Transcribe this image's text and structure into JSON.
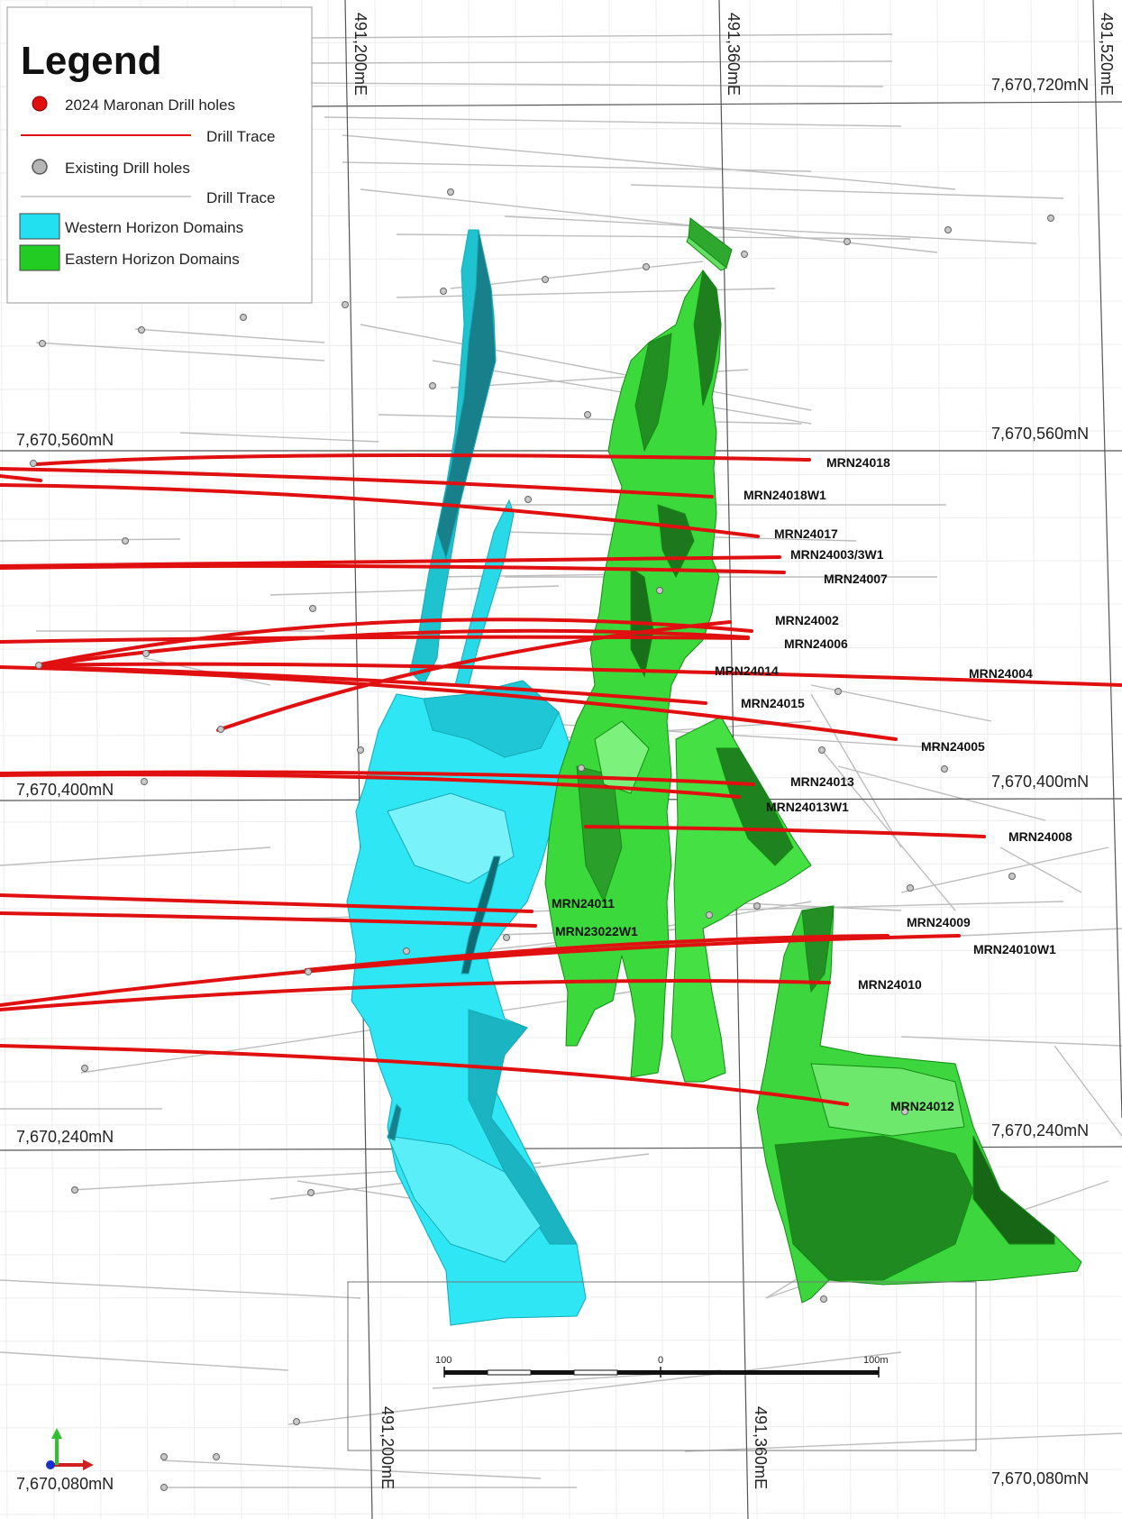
{
  "legend": {
    "title": "Legend",
    "items": [
      {
        "label": "2024 Maronan Drill holes",
        "symbol": "red-dot"
      },
      {
        "label": "Drill Trace",
        "symbol": "red-line"
      },
      {
        "label": "Existing Drill holes",
        "symbol": "grey-dot"
      },
      {
        "label": "Drill Trace",
        "symbol": "grey-line"
      },
      {
        "label": "Western Horizon Domains",
        "symbol": "cyan-box"
      },
      {
        "label": "Eastern Horizon Domains",
        "symbol": "green-box"
      }
    ]
  },
  "colors": {
    "drill_2024": "#e01010",
    "existing": "#b8b8b8",
    "western": "#22e0f0",
    "eastern": "#3ad83a",
    "eastern_dark": "#178a17",
    "western_dark": "#1a8f9a"
  },
  "grid_labels": {
    "northings": [
      {
        "left": "7,670,720mN",
        "right": "7,670,720mN",
        "show_left": false
      },
      {
        "left": "7,670,560mN",
        "right": "7,670,560mN",
        "show_left": true
      },
      {
        "left": "7,670,400mN",
        "right": "7,670,400mN",
        "show_left": true
      },
      {
        "left": "7,670,240mN",
        "right": "7,670,240mN",
        "show_left": true
      },
      {
        "left": "7,670,080mN",
        "right": "7,670,080mN",
        "show_left": true
      }
    ],
    "eastings": [
      "491,200mE",
      "491,360mE",
      "491,520mE"
    ]
  },
  "drill_holes": [
    {
      "id": "MRN24018"
    },
    {
      "id": "MRN24018W1"
    },
    {
      "id": "MRN24017"
    },
    {
      "id": "MRN24003/3W1"
    },
    {
      "id": "MRN24007"
    },
    {
      "id": "MRN24002"
    },
    {
      "id": "MRN24006"
    },
    {
      "id": "MRN24014"
    },
    {
      "id": "MRN24004"
    },
    {
      "id": "MRN24015"
    },
    {
      "id": "MRN24005"
    },
    {
      "id": "MRN24013"
    },
    {
      "id": "MRN24013W1"
    },
    {
      "id": "MRN24008"
    },
    {
      "id": "MRN24011"
    },
    {
      "id": "MRN23022W1"
    },
    {
      "id": "MRN24009"
    },
    {
      "id": "MRN24010W1"
    },
    {
      "id": "MRN24010"
    },
    {
      "id": "MRN24012"
    }
  ],
  "scale_bar": {
    "left_label": "100",
    "mid_label": "0",
    "right_label": "100m"
  }
}
